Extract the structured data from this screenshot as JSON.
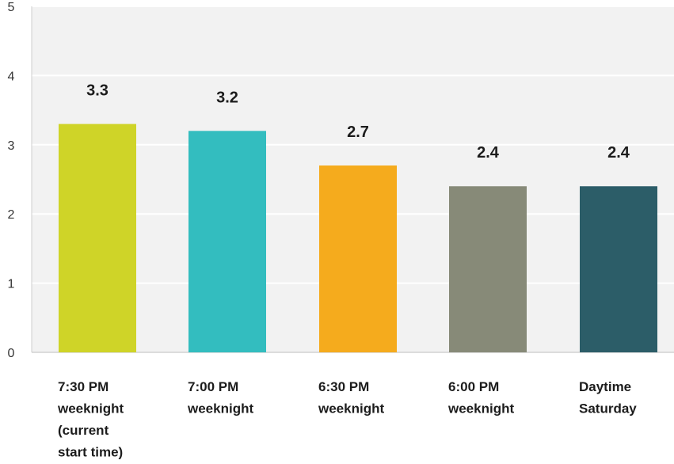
{
  "chart_data": {
    "type": "bar",
    "title": "",
    "xlabel": "",
    "ylabel": "",
    "ylim": [
      0,
      5
    ],
    "yticks": [
      0,
      1,
      2,
      3,
      4,
      5
    ],
    "grid": true,
    "categories": [
      [
        "7:30 PM",
        "weeknight",
        "(current",
        "start time)"
      ],
      [
        "7:00 PM",
        "weeknight"
      ],
      [
        "6:30 PM",
        "weeknight"
      ],
      [
        "6:00 PM",
        "weeknight"
      ],
      [
        "Daytime",
        "Saturday"
      ]
    ],
    "values": [
      3.3,
      3.2,
      2.7,
      2.4,
      2.4
    ],
    "data_labels": [
      "3.3",
      "3.2",
      "2.7",
      "2.4",
      "2.4"
    ],
    "colors": [
      "#cfd428",
      "#33bdbf",
      "#f5ab1d",
      "#878a78",
      "#2c5d68"
    ],
    "background_color": "#f2f2f2",
    "gridline_color": "#ffffff"
  }
}
